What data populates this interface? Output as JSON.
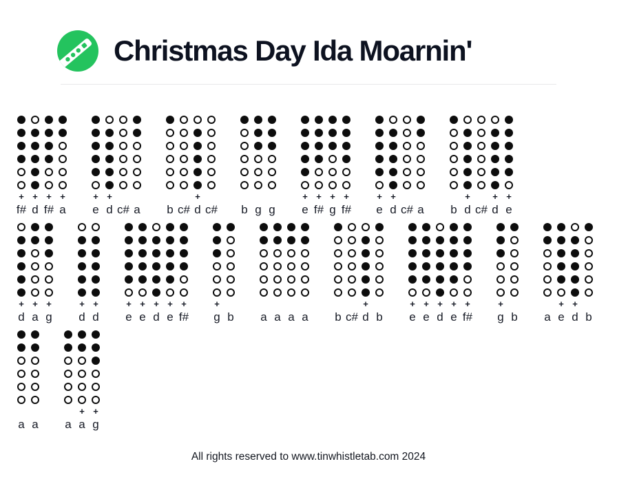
{
  "header": {
    "title": "Christmas Day Ida Moarnin'",
    "logo_color": "#24c35e"
  },
  "footer": {
    "text": "All rights reserved to www.tinwhistletab.com 2024"
  },
  "tab": {
    "plus_symbol": "+",
    "hole_legend": {
      "1": "covered",
      "0": "open"
    },
    "rows": [
      {
        "groups": [
          {
            "notes": [
              {
                "label": "f#",
                "plus": true,
                "holes": "111100"
              },
              {
                "label": "d",
                "plus": true,
                "holes": "011111"
              },
              {
                "label": "f#",
                "plus": true,
                "holes": "111100"
              },
              {
                "label": "a",
                "plus": true,
                "holes": "110000"
              }
            ]
          },
          {
            "notes": [
              {
                "label": "e",
                "plus": true,
                "holes": "111110"
              },
              {
                "label": "d",
                "plus": true,
                "holes": "011111"
              },
              {
                "label": "c#",
                "plus": false,
                "holes": "000000"
              },
              {
                "label": "a",
                "plus": false,
                "holes": "110000"
              }
            ]
          },
          {
            "notes": [
              {
                "label": "b",
                "plus": false,
                "holes": "100000"
              },
              {
                "label": "c#",
                "plus": false,
                "holes": "000000"
              },
              {
                "label": "d",
                "plus": true,
                "holes": "011111"
              },
              {
                "label": "c#",
                "plus": false,
                "holes": "000000"
              }
            ]
          },
          {
            "notes": [
              {
                "label": "b",
                "plus": false,
                "holes": "100000"
              },
              {
                "label": "g",
                "plus": false,
                "holes": "111000"
              },
              {
                "label": "g",
                "plus": false,
                "holes": "111000"
              }
            ]
          },
          {
            "notes": [
              {
                "label": "e",
                "plus": true,
                "holes": "111110"
              },
              {
                "label": "f#",
                "plus": true,
                "holes": "111100"
              },
              {
                "label": "g",
                "plus": true,
                "holes": "111000"
              },
              {
                "label": "f#",
                "plus": true,
                "holes": "111100"
              }
            ]
          },
          {
            "notes": [
              {
                "label": "e",
                "plus": true,
                "holes": "111110"
              },
              {
                "label": "d",
                "plus": true,
                "holes": "011111"
              },
              {
                "label": "c#",
                "plus": false,
                "holes": "000000"
              },
              {
                "label": "a",
                "plus": false,
                "holes": "110000"
              }
            ]
          },
          {
            "notes": [
              {
                "label": "b",
                "plus": false,
                "holes": "100000"
              },
              {
                "label": "d",
                "plus": true,
                "holes": "011111"
              },
              {
                "label": "c#",
                "plus": false,
                "holes": "000000"
              },
              {
                "label": "d",
                "plus": true,
                "holes": "011111"
              },
              {
                "label": "e",
                "plus": true,
                "holes": "111110"
              }
            ]
          }
        ]
      },
      {
        "groups": [
          {
            "notes": [
              {
                "label": "d",
                "plus": true,
                "holes": "011111"
              },
              {
                "label": "a",
                "plus": true,
                "holes": "110000"
              },
              {
                "label": "g",
                "plus": true,
                "holes": "111000"
              }
            ]
          },
          {
            "notes": [
              {
                "label": "d",
                "plus": true,
                "holes": "011111"
              },
              {
                "label": "d",
                "plus": true,
                "holes": "011111"
              }
            ]
          },
          {
            "notes": [
              {
                "label": "e",
                "plus": true,
                "holes": "111110"
              },
              {
                "label": "e",
                "plus": true,
                "holes": "111110"
              },
              {
                "label": "d",
                "plus": true,
                "holes": "011111"
              },
              {
                "label": "e",
                "plus": true,
                "holes": "111110"
              },
              {
                "label": "f#",
                "plus": true,
                "holes": "111100"
              }
            ]
          },
          {
            "notes": [
              {
                "label": "g",
                "plus": true,
                "holes": "111000"
              },
              {
                "label": "b",
                "plus": false,
                "holes": "100000"
              }
            ]
          },
          {
            "notes": [
              {
                "label": "a",
                "plus": false,
                "holes": "110000"
              },
              {
                "label": "a",
                "plus": false,
                "holes": "110000"
              },
              {
                "label": "a",
                "plus": false,
                "holes": "110000"
              },
              {
                "label": "a",
                "plus": false,
                "holes": "110000"
              }
            ]
          },
          {
            "notes": [
              {
                "label": "b",
                "plus": false,
                "holes": "100000"
              },
              {
                "label": "c#",
                "plus": false,
                "holes": "000000"
              },
              {
                "label": "d",
                "plus": true,
                "holes": "011111"
              },
              {
                "label": "b",
                "plus": false,
                "holes": "100000"
              }
            ]
          },
          {
            "notes": [
              {
                "label": "e",
                "plus": true,
                "holes": "111110"
              },
              {
                "label": "e",
                "plus": true,
                "holes": "111110"
              },
              {
                "label": "d",
                "plus": true,
                "holes": "011111"
              },
              {
                "label": "e",
                "plus": true,
                "holes": "111110"
              },
              {
                "label": "f#",
                "plus": true,
                "holes": "111100"
              }
            ]
          },
          {
            "notes": [
              {
                "label": "g",
                "plus": true,
                "holes": "111000"
              },
              {
                "label": "b",
                "plus": false,
                "holes": "100000"
              }
            ]
          },
          {
            "notes": [
              {
                "label": "a",
                "plus": false,
                "holes": "110000"
              },
              {
                "label": "e",
                "plus": true,
                "holes": "111110"
              },
              {
                "label": "d",
                "plus": true,
                "holes": "011111"
              },
              {
                "label": "b",
                "plus": false,
                "holes": "100000"
              }
            ]
          }
        ]
      },
      {
        "groups": [
          {
            "notes": [
              {
                "label": "a",
                "plus": false,
                "holes": "110000"
              },
              {
                "label": "a",
                "plus": false,
                "holes": "110000"
              }
            ]
          },
          {
            "notes": [
              {
                "label": "a",
                "plus": false,
                "holes": "110000"
              },
              {
                "label": "a",
                "plus": true,
                "holes": "110000"
              },
              {
                "label": "g",
                "plus": true,
                "holes": "111000"
              }
            ]
          }
        ]
      }
    ]
  }
}
